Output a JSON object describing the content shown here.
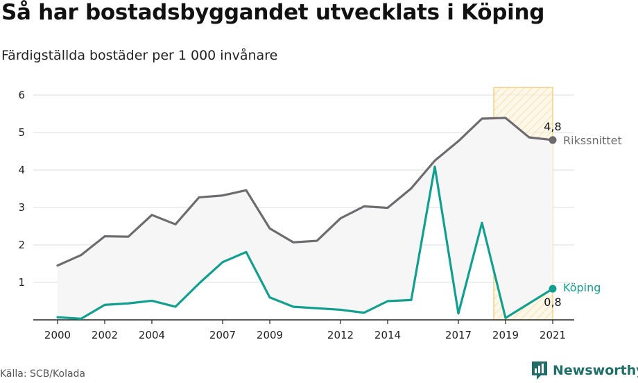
{
  "header": {
    "title": "Så har bostadsbyggandet utvecklats i Köping",
    "subtitle": "Färdigställda bostäder per 1 000 invånare"
  },
  "footer": {
    "source": "Källa: SCB/Kolada",
    "brand": "Newsworthy"
  },
  "colors": {
    "riksnitt": "#6d6b70",
    "koping": "#11a08f",
    "highlight_stroke": "#f2c46a",
    "highlight_fill": "#fdf3d9",
    "band_fill": "#f6f6f6",
    "brand": "#1f6f68"
  },
  "chart_data": {
    "type": "line",
    "title": "",
    "xlabel": "",
    "ylabel": "",
    "ylim": [
      0,
      6
    ],
    "xlim": [
      1999.5,
      2021.5
    ],
    "grid": true,
    "y_ticks": [
      "1",
      "2",
      "3",
      "4",
      "5",
      "6"
    ],
    "x_ticks": [
      2000,
      2002,
      2004,
      2007,
      2009,
      2012,
      2014,
      2017,
      2019,
      2021
    ],
    "x_tick_labels": [
      "2000",
      "2002",
      "2004",
      "2007",
      "2009",
      "2012",
      "2014",
      "2017",
      "2019",
      "2021"
    ],
    "x": [
      2000,
      2001,
      2002,
      2003,
      2004,
      2005,
      2006,
      2007,
      2008,
      2009,
      2010,
      2011,
      2012,
      2013,
      2014,
      2015,
      2016,
      2017,
      2018,
      2019,
      2020,
      2021
    ],
    "highlight_range": [
      2018.5,
      2021
    ],
    "series": [
      {
        "name": "Rikssnittet",
        "values": [
          1.45,
          1.73,
          2.23,
          2.22,
          2.8,
          2.55,
          3.27,
          3.32,
          3.46,
          2.44,
          2.07,
          2.11,
          2.71,
          3.03,
          2.99,
          3.51,
          4.25,
          4.77,
          5.37,
          5.39,
          4.87,
          4.8
        ],
        "end_label": "4,8"
      },
      {
        "name": "Köping",
        "values": [
          0.07,
          0.03,
          0.4,
          0.44,
          0.51,
          0.35,
          0.97,
          1.54,
          1.81,
          0.6,
          0.35,
          0.31,
          0.27,
          0.19,
          0.5,
          0.53,
          4.09,
          0.17,
          2.59,
          0.05,
          0.44,
          0.83
        ],
        "end_label": "0,8"
      }
    ]
  }
}
